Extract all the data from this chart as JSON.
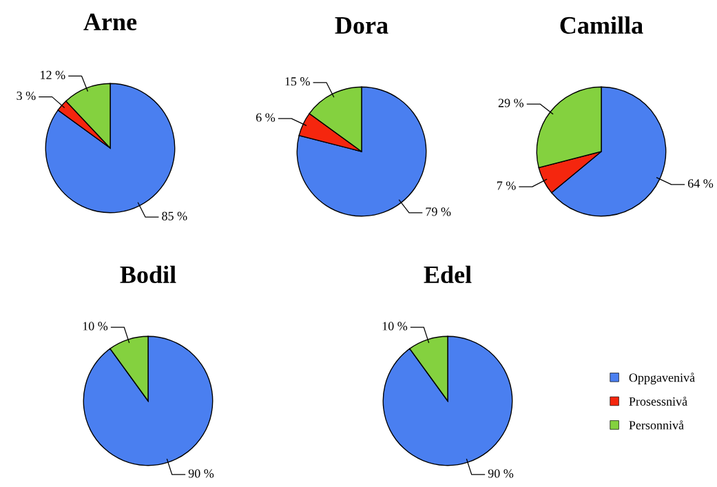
{
  "chart_data": [
    {
      "type": "pie",
      "title": "Arne",
      "categories": [
        "Oppgavenivå",
        "Prosessnivå",
        "Personnivå"
      ],
      "values": [
        85,
        3,
        12
      ],
      "colors": [
        "#4a7ff0",
        "#f5260e",
        "#84d13f"
      ],
      "value_labels": [
        "85 %",
        "3 %",
        "12 %"
      ],
      "legend": "bottom right"
    },
    {
      "type": "pie",
      "title": "Dora",
      "categories": [
        null,
        null,
        null
      ],
      "values": [
        79,
        6,
        15
      ],
      "colors": [
        "#4a7ff0",
        "#f5260e",
        "#84d13f"
      ],
      "value_labels": [
        "79 %",
        "6 %",
        "15 %"
      ]
    },
    {
      "type": "pie",
      "title": "Camilla",
      "categories": [
        null,
        null,
        null
      ],
      "values": [
        64,
        7,
        29
      ],
      "colors": [
        "#4a7ff0",
        "#f5260e",
        "#84d13f"
      ],
      "value_labels": [
        "64 %",
        "7 %",
        "29 %"
      ]
    },
    {
      "type": "pie",
      "title": "Bodil",
      "categories": [
        null,
        null,
        null
      ],
      "values": [
        90,
        0,
        10
      ],
      "colors": [
        "#4a7ff0",
        "#f5260e",
        "#84d13f"
      ],
      "value_labels": [
        "90 %",
        null,
        "10 %"
      ]
    },
    {
      "type": "pie",
      "title": "Edel",
      "categories": [
        null,
        null,
        null
      ],
      "values": [
        90,
        0,
        10
      ],
      "colors": [
        "#4a7ff0",
        "#f5260e",
        "#84d13f"
      ],
      "value_labels": [
        "90 %",
        null,
        "10 %"
      ]
    }
  ]
}
